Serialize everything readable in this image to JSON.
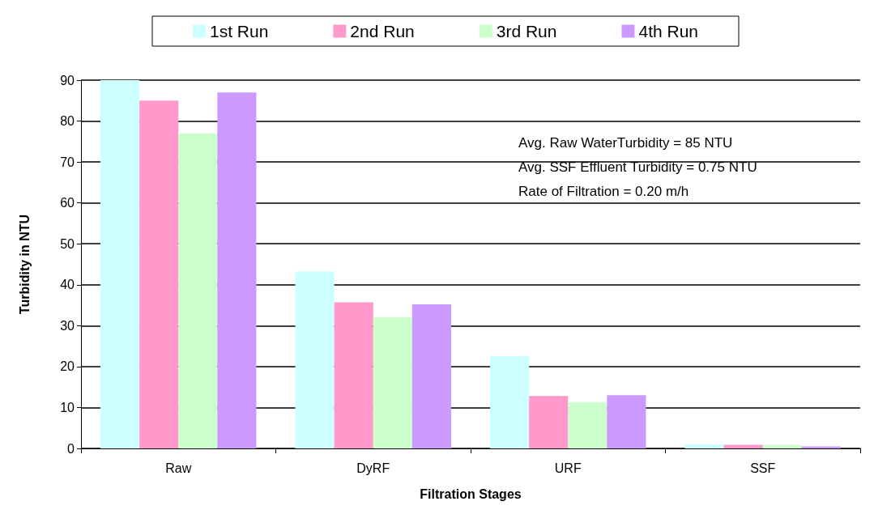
{
  "chart_data": {
    "type": "bar",
    "xlabel": "Filtration Stages",
    "ylabel": "Turbidity in NTU",
    "categories": [
      "Raw",
      "DyRF",
      "URF",
      "SSF"
    ],
    "series": [
      {
        "name": "1st Run",
        "color": "#ccffff",
        "values": [
          90,
          43.2,
          22.6,
          1.0
        ]
      },
      {
        "name": "2nd Run",
        "color": "#ff99cc",
        "values": [
          85,
          35.7,
          12.8,
          0.9
        ]
      },
      {
        "name": "3rd Run",
        "color": "#ccffcc",
        "values": [
          77,
          32.1,
          11.3,
          0.9
        ]
      },
      {
        "name": "4th Run",
        "color": "#cc99ff",
        "values": [
          87,
          35.2,
          13.0,
          0.5
        ]
      }
    ],
    "ylim": [
      0,
      90
    ],
    "yticks": [
      0,
      10,
      20,
      30,
      40,
      50,
      60,
      70,
      80,
      90
    ],
    "grid": "y",
    "legend": "top",
    "annotations": [
      "Avg. Raw WaterTurbidity = 85 NTU",
      "Avg. SSF Effluent Turbidity = 0.75 NTU",
      "Rate of Filtration = 0.20 m/h"
    ]
  }
}
